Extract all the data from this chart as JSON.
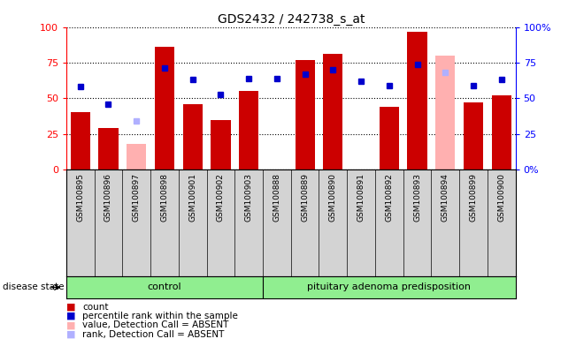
{
  "title": "GDS2432 / 242738_s_at",
  "samples": [
    "GSM100895",
    "GSM100896",
    "GSM100897",
    "GSM100898",
    "GSM100901",
    "GSM100902",
    "GSM100903",
    "GSM100888",
    "GSM100889",
    "GSM100890",
    "GSM100891",
    "GSM100892",
    "GSM100893",
    "GSM100894",
    "GSM100899",
    "GSM100900"
  ],
  "count_values": [
    40,
    29,
    0,
    86,
    46,
    35,
    55,
    0,
    77,
    81,
    0,
    44,
    97,
    0,
    47,
    52
  ],
  "count_absent": [
    false,
    false,
    true,
    false,
    false,
    false,
    false,
    false,
    false,
    false,
    false,
    false,
    false,
    true,
    false,
    false
  ],
  "absent_pink_values": [
    0,
    0,
    18,
    0,
    0,
    0,
    0,
    0,
    0,
    0,
    0,
    0,
    0,
    80,
    0,
    0
  ],
  "percentile_values": [
    58,
    46,
    0,
    71,
    63,
    53,
    64,
    64,
    67,
    70,
    62,
    59,
    74,
    0,
    59,
    63
  ],
  "percentile_absent": [
    false,
    false,
    true,
    false,
    false,
    false,
    false,
    false,
    false,
    false,
    false,
    false,
    false,
    true,
    false,
    false
  ],
  "absent_blue_values": [
    0,
    0,
    34,
    0,
    0,
    0,
    0,
    0,
    0,
    0,
    0,
    0,
    0,
    68,
    0,
    0
  ],
  "control_count": 7,
  "group_label_control": "control",
  "group_label_pituitary": "pituitary adenoma predisposition",
  "ylim": [
    0,
    100
  ],
  "bar_color": "#cc0000",
  "bar_absent_color": "#ffb0b0",
  "dot_color": "#0000cc",
  "dot_absent_color": "#b0b0ff",
  "group_bg_color": "#90ee90",
  "xtick_bg": "#d3d3d3",
  "legend_labels": [
    "count",
    "percentile rank within the sample",
    "value, Detection Call = ABSENT",
    "rank, Detection Call = ABSENT"
  ]
}
